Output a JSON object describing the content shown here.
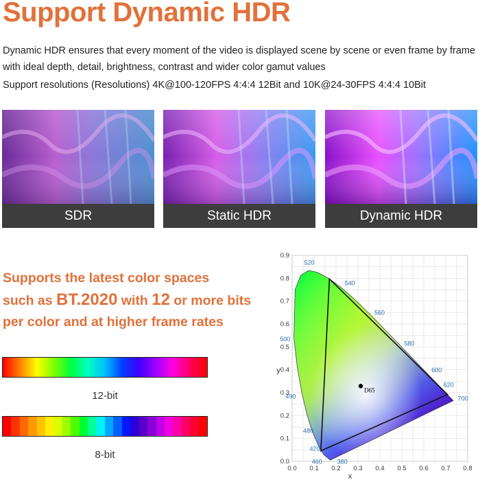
{
  "heading": "Support Dynamic HDR",
  "description": "Dynamic HDR ensures that every moment of the video is displayed scene by scene or even frame by frame with ideal depth, detail, brightness, contrast and wider color gamut values",
  "resolutions": "Support resolutions (Resolutions) 4K@100-120FPS 4:4:4 12Bit and 10K@24-30FPS 4:4:4 10Bit",
  "panels": [
    {
      "label": "SDR"
    },
    {
      "label": "Static HDR"
    },
    {
      "label": "Dynamic HDR"
    }
  ],
  "promo": {
    "line1": "Supports the latest color spaces",
    "line2_prefix": "such as ",
    "line2_bt": "BT.2020",
    "line2_mid": " with ",
    "line2_bits": "12",
    "line2_suffix": " or more bits",
    "line3": "per color and at higher frame rates"
  },
  "bars": [
    {
      "label": "12-bit",
      "style": "smooth"
    },
    {
      "label": "8-bit",
      "style": "banded",
      "bands": [
        "#ff0000",
        "#ff3300",
        "#ff6a00",
        "#ff9900",
        "#ffc400",
        "#fff000",
        "#d7ff00",
        "#9bff00",
        "#4cff00",
        "#00ff30",
        "#00ff9a",
        "#00f0ff",
        "#00a8ff",
        "#0060ff",
        "#0018ff",
        "#2b00d8",
        "#5a00c8",
        "#8a00d8",
        "#c000e8",
        "#f000e0",
        "#ff00a8",
        "#ff0066",
        "#ff0030",
        "#ff0000"
      ]
    }
  ],
  "gamut_chart": {
    "xlabel": "x",
    "ylabel": "y",
    "x_ticks": [
      "0.0",
      "0.1",
      "0.2",
      "0.3",
      "0.4",
      "0.5",
      "0.6",
      "0.7",
      "0.8"
    ],
    "y_ticks": [
      "0.0",
      "0.1",
      "0.2",
      "0.3",
      "0.4",
      "0.5",
      "0.6",
      "0.7",
      "0.8",
      "0.9"
    ],
    "xlim": [
      0,
      0.8
    ],
    "ylim": [
      0,
      0.9
    ],
    "wavelength_labels": [
      "380",
      "460",
      "470",
      "480",
      "490",
      "500",
      "520",
      "540",
      "560",
      "580",
      "600",
      "620",
      "700"
    ],
    "whitepoint_label": "D65",
    "whitepoint": [
      0.3127,
      0.329
    ],
    "triangle": [
      [
        0.708,
        0.292
      ],
      [
        0.17,
        0.797
      ],
      [
        0.131,
        0.046
      ]
    ]
  }
}
